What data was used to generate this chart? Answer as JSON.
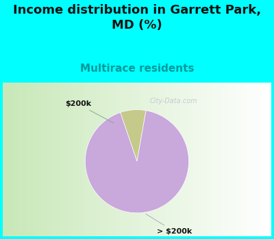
{
  "title": "Income distribution in Garrett Park,\nMD (%)",
  "subtitle": "Multirace residents",
  "slices": [
    {
      "label": "$200k",
      "value": 8,
      "color": "#c5c98a",
      "position": "upper-left"
    },
    {
      "label": "> $200k",
      "value": 92,
      "color": "#c9a8dc",
      "position": "lower-right"
    }
  ],
  "title_fontsize": 13,
  "subtitle_fontsize": 11,
  "subtitle_color": "#009999",
  "title_color": "#111111",
  "bg_color_top": "#00ffff",
  "watermark": "City-Data.com",
  "startangle": 80
}
